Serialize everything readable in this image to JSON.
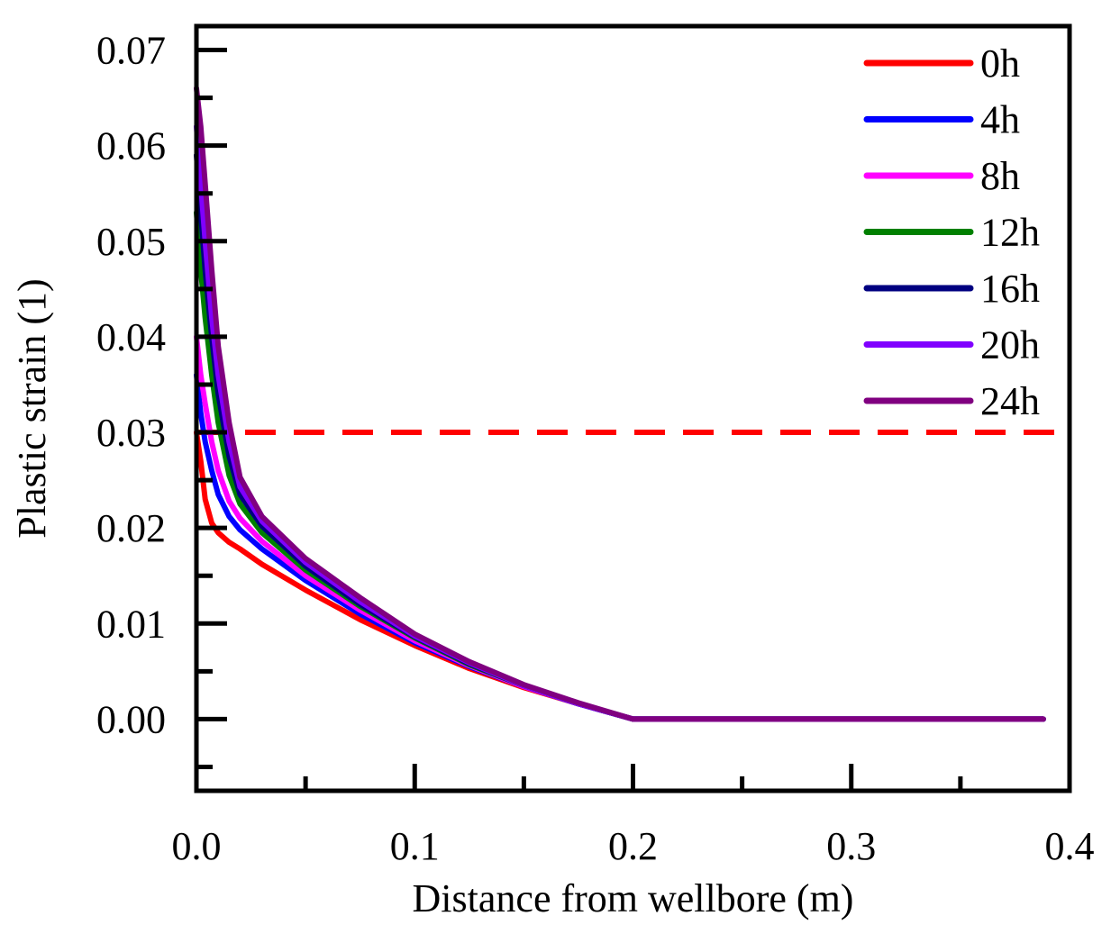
{
  "chart_data": {
    "type": "line",
    "title": "",
    "xlabel": "Distance from wellbore (m)",
    "ylabel": "Plastic strain (1)",
    "xlim": [
      0,
      0.4
    ],
    "ylim": [
      -0.0075,
      0.0725
    ],
    "xticks": [
      0.0,
      0.1,
      0.2,
      0.3,
      0.4
    ],
    "xtick_labels": [
      "0.0",
      "0.1",
      "0.2",
      "0.3",
      "0.4"
    ],
    "yticks": [
      0.0,
      0.01,
      0.02,
      0.03,
      0.04,
      0.05,
      0.06,
      0.07
    ],
    "ytick_labels": [
      "0.00",
      "0.01",
      "0.02",
      "0.03",
      "0.04",
      "0.05",
      "0.06",
      "0.07"
    ],
    "legend_position": "top-right",
    "threshold": {
      "y": 0.03,
      "color": "#ff0000",
      "style": "dashed"
    },
    "series": [
      {
        "name": "0h",
        "color": "#ff0000",
        "x": [
          0.0,
          0.002,
          0.004,
          0.007,
          0.01,
          0.015,
          0.02,
          0.03,
          0.05,
          0.075,
          0.1,
          0.125,
          0.15,
          0.175,
          0.2,
          0.25,
          0.3,
          0.35,
          0.388
        ],
        "y": [
          0.03,
          0.027,
          0.023,
          0.0205,
          0.0195,
          0.0185,
          0.0178,
          0.0162,
          0.0135,
          0.0104,
          0.0077,
          0.0053,
          0.0033,
          0.0016,
          0.0,
          0.0,
          0.0,
          0.0,
          0.0
        ]
      },
      {
        "name": "4h",
        "color": "#0000ff",
        "x": [
          0.0,
          0.002,
          0.004,
          0.007,
          0.01,
          0.015,
          0.02,
          0.03,
          0.05,
          0.075,
          0.1,
          0.125,
          0.15,
          0.175,
          0.2,
          0.25,
          0.3,
          0.35,
          0.388
        ],
        "y": [
          0.036,
          0.032,
          0.029,
          0.026,
          0.0235,
          0.0212,
          0.0198,
          0.0178,
          0.0145,
          0.011,
          0.008,
          0.0055,
          0.0034,
          0.0016,
          0.0,
          0.0,
          0.0,
          0.0,
          0.0
        ]
      },
      {
        "name": "8h",
        "color": "#ff00ff",
        "x": [
          0.0,
          0.002,
          0.004,
          0.007,
          0.01,
          0.015,
          0.02,
          0.03,
          0.05,
          0.075,
          0.1,
          0.125,
          0.15,
          0.175,
          0.2,
          0.25,
          0.3,
          0.35,
          0.388
        ],
        "y": [
          0.04,
          0.036,
          0.033,
          0.029,
          0.026,
          0.0228,
          0.021,
          0.0186,
          0.015,
          0.0114,
          0.0082,
          0.0056,
          0.0034,
          0.0016,
          0.0,
          0.0,
          0.0,
          0.0,
          0.0
        ]
      },
      {
        "name": "12h",
        "color": "#008000",
        "x": [
          0.0,
          0.002,
          0.004,
          0.007,
          0.01,
          0.015,
          0.02,
          0.03,
          0.05,
          0.075,
          0.1,
          0.125,
          0.15,
          0.175,
          0.2,
          0.25,
          0.3,
          0.35,
          0.388
        ],
        "y": [
          0.053,
          0.047,
          0.042,
          0.036,
          0.031,
          0.0255,
          0.0225,
          0.0195,
          0.0156,
          0.0118,
          0.0085,
          0.0057,
          0.0035,
          0.0016,
          0.0,
          0.0,
          0.0,
          0.0,
          0.0
        ]
      },
      {
        "name": "16h",
        "color": "#000080",
        "x": [
          0.0,
          0.002,
          0.004,
          0.007,
          0.01,
          0.015,
          0.02,
          0.03,
          0.05,
          0.075,
          0.1,
          0.125,
          0.15,
          0.175,
          0.2,
          0.25,
          0.3,
          0.35,
          0.388
        ],
        "y": [
          0.059,
          0.053,
          0.047,
          0.04,
          0.034,
          0.0275,
          0.0235,
          0.0202,
          0.016,
          0.012,
          0.0086,
          0.0058,
          0.0035,
          0.0016,
          0.0,
          0.0,
          0.0,
          0.0,
          0.0
        ]
      },
      {
        "name": "20h",
        "color": "#8000ff",
        "x": [
          0.0,
          0.002,
          0.004,
          0.007,
          0.01,
          0.015,
          0.02,
          0.03,
          0.05,
          0.075,
          0.1,
          0.125,
          0.15,
          0.175,
          0.2,
          0.25,
          0.3,
          0.35,
          0.388
        ],
        "y": [
          0.062,
          0.056,
          0.05,
          0.042,
          0.036,
          0.029,
          0.0243,
          0.0207,
          0.0164,
          0.0123,
          0.0087,
          0.0059,
          0.0035,
          0.0016,
          0.0,
          0.0,
          0.0,
          0.0,
          0.0
        ]
      },
      {
        "name": "24h",
        "color": "#800080",
        "x": [
          0.0,
          0.002,
          0.004,
          0.007,
          0.01,
          0.015,
          0.02,
          0.03,
          0.05,
          0.075,
          0.1,
          0.125,
          0.15,
          0.175,
          0.2,
          0.25,
          0.3,
          0.35,
          0.388
        ],
        "y": [
          0.066,
          0.062,
          0.056,
          0.047,
          0.039,
          0.031,
          0.0253,
          0.0212,
          0.0168,
          0.0127,
          0.0089,
          0.006,
          0.0036,
          0.0017,
          0.0,
          0.0,
          0.0,
          0.0,
          0.0
        ]
      }
    ]
  }
}
